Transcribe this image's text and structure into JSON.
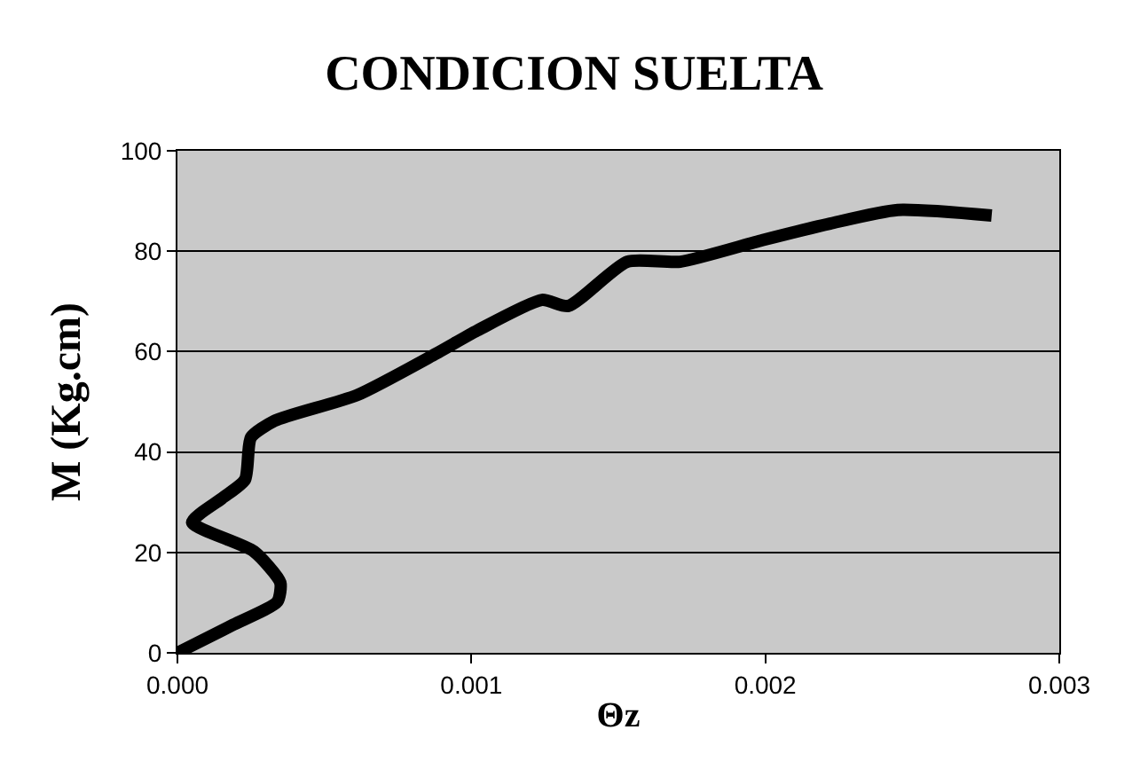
{
  "chart_data": {
    "type": "line",
    "title": "CONDICION SUELTA",
    "xlabel": "Θz",
    "ylabel": "M (Kg.cm)",
    "x": [
      0,
      0.00019,
      0.00034,
      0.00035,
      0.00026,
      5e-05,
      0.00015,
      0.00023,
      0.00025,
      0.00033,
      0.00061,
      0.00088,
      0.00102,
      0.00124,
      0.00133,
      0.00153,
      0.00171,
      0.00199,
      0.00222,
      0.00245,
      0.00277
    ],
    "series": [
      {
        "color": "#000000",
        "values": [
          0,
          5.6,
          10.2,
          14,
          20.2,
          26,
          30.7,
          34.5,
          42.9,
          46.2,
          51.3,
          59.6,
          64.2,
          70.3,
          69.1,
          77.9,
          77.9,
          82.2,
          85.5,
          88.2,
          87.1
        ]
      }
    ],
    "xlim": [
      0,
      0.003
    ],
    "xticks": [
      {
        "value": 0,
        "label": "0.000"
      },
      0.001,
      0.002,
      0.003
    ],
    "ylim": [
      0,
      100
    ],
    "yticks": [
      0,
      20,
      40,
      60,
      80,
      100
    ],
    "grid": "y",
    "marker": "none",
    "line_style": "solid"
  }
}
